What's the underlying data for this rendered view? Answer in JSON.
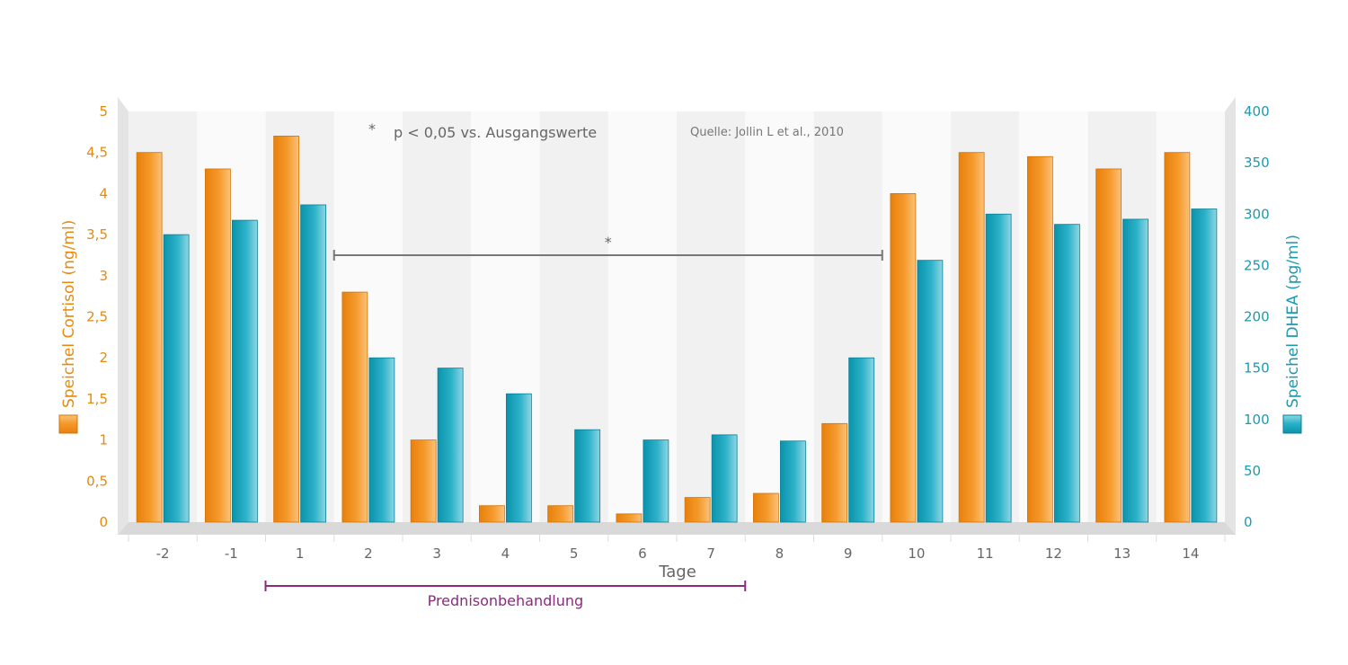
{
  "chart_data": {
    "type": "bar",
    "categories": [
      "-2",
      "-1",
      "1",
      "2",
      "3",
      "4",
      "5",
      "6",
      "7",
      "8",
      "9",
      "10",
      "11",
      "12",
      "13",
      "14"
    ],
    "series": [
      {
        "name": "Speichel Cortisol (ng/ml)",
        "axis": "left",
        "color": "#f0901a",
        "values": [
          4.5,
          4.3,
          4.7,
          2.8,
          1.0,
          0.2,
          0.2,
          0.1,
          0.3,
          0.35,
          1.2,
          4.0,
          4.5,
          4.45,
          4.3,
          4.5
        ]
      },
      {
        "name": "Speichel DHEA (pg/ml)",
        "axis": "right",
        "color": "#1aa3bd",
        "values": [
          280,
          294,
          309,
          160,
          150,
          125,
          90,
          80,
          85,
          79,
          160,
          255,
          300,
          290,
          295,
          305
        ]
      }
    ],
    "xlabel": "Tage",
    "ylabel_left": "Speichel Cortisol (ng/ml)",
    "ylabel_right": "Speichel DHEA (pg/ml)",
    "ylim_left": [
      0,
      5
    ],
    "ylim_right": [
      0,
      400
    ],
    "yticks_left": [
      "0",
      "0,5",
      "1",
      "1,5",
      "2",
      "2,5",
      "3",
      "3,5",
      "4",
      "4,5",
      "5"
    ],
    "yticks_right": [
      "0",
      "50",
      "100",
      "150",
      "200",
      "250",
      "300",
      "350",
      "400"
    ],
    "grid": "alternating column bands",
    "legend": "axis-label markers",
    "annotations": {
      "significance_star": "*",
      "significance_text": "p < 0,05 vs. Ausgangswerte",
      "source": "Quelle: Jollin L et al., 2010",
      "bracket_star": "*",
      "bracket_from": "2",
      "bracket_to": "9",
      "treatment_label": "Prednisonbehandlung",
      "treatment_from": "1",
      "treatment_to": "7",
      "treatment_color": "#8b2a7e"
    }
  }
}
